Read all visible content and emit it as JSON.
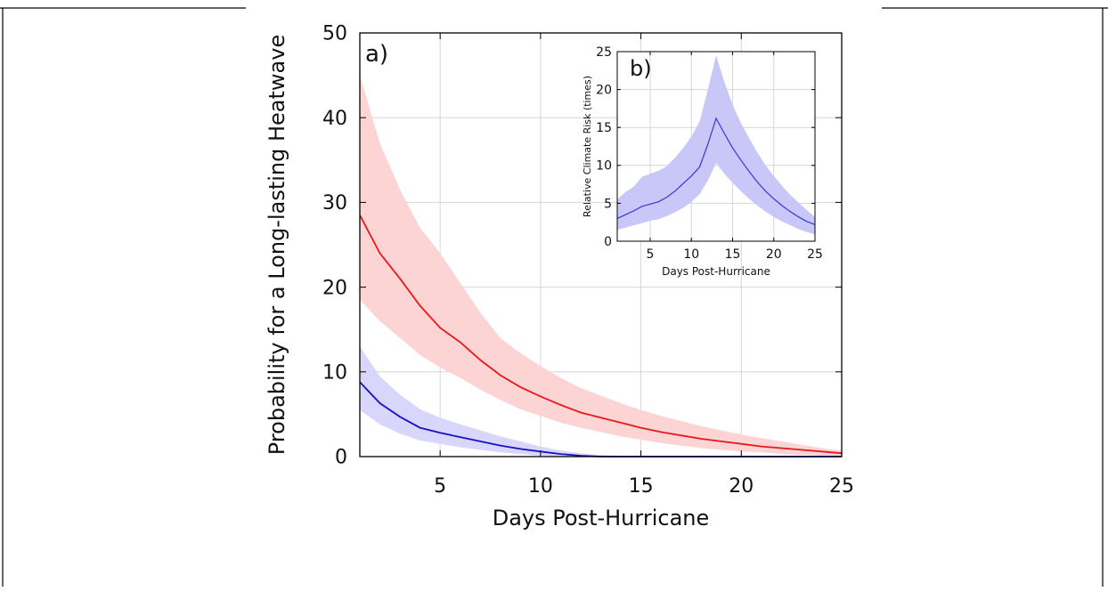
{
  "chart_data": [
    {
      "panel_label": "a)",
      "type": "line",
      "xlabel": "Days Post-Hurricane",
      "ylabel": "Probability for a Long-lasting Heatwave",
      "xlim": [
        1,
        25
      ],
      "ylim": [
        0,
        50
      ],
      "xticks": [
        5,
        10,
        15,
        20,
        25
      ],
      "yticks": [
        0,
        10,
        20,
        30,
        40,
        50
      ],
      "grid": true,
      "series": [
        {
          "color": "#e8181b",
          "band_color": "#fdd4d4",
          "x": [
            1,
            2,
            3,
            4,
            5,
            6,
            7,
            8,
            9,
            10,
            11,
            12,
            13,
            14,
            15,
            16,
            17,
            18,
            19,
            20,
            21,
            22,
            23,
            24,
            25
          ],
          "y": [
            28.5,
            24.0,
            21.0,
            17.8,
            15.2,
            13.5,
            11.4,
            9.6,
            8.2,
            7.1,
            6.1,
            5.2,
            4.6,
            4.0,
            3.4,
            2.9,
            2.5,
            2.1,
            1.8,
            1.5,
            1.2,
            1.0,
            0.8,
            0.6,
            0.4
          ],
          "y_low": [
            18.5,
            16.0,
            14.0,
            12.0,
            10.5,
            9.3,
            7.9,
            6.7,
            5.6,
            4.8,
            4.0,
            3.4,
            2.9,
            2.4,
            2.0,
            1.6,
            1.3,
            1.0,
            0.8,
            0.6,
            0.5,
            0.3,
            0.2,
            0.1,
            0.1
          ],
          "y_high": [
            45.0,
            37.0,
            31.5,
            27.0,
            24.0,
            20.5,
            17.0,
            14.0,
            12.2,
            10.7,
            9.3,
            8.1,
            7.2,
            6.3,
            5.5,
            4.8,
            4.2,
            3.6,
            3.1,
            2.6,
            2.2,
            1.8,
            1.4,
            1.0,
            0.7
          ]
        },
        {
          "color": "#1a10c8",
          "band_color": "#d8d6fb",
          "x": [
            1,
            2,
            3,
            4,
            5,
            6,
            7,
            8,
            9,
            10,
            11,
            12,
            13,
            14,
            15,
            16,
            17,
            18,
            19,
            20,
            21,
            22,
            23,
            24,
            25
          ],
          "y": [
            8.8,
            6.3,
            4.7,
            3.4,
            2.8,
            2.3,
            1.8,
            1.3,
            0.9,
            0.6,
            0.3,
            0.1,
            0.0,
            0.0,
            0.0,
            0.0,
            0.0,
            0.0,
            0.0,
            0.0,
            0.0,
            0.0,
            0.0,
            0.0,
            0.0
          ],
          "y_low": [
            5.5,
            3.8,
            2.7,
            1.9,
            1.5,
            1.1,
            0.8,
            0.5,
            0.3,
            0.1,
            0.0,
            0.0,
            0.0,
            0.0,
            0.0,
            0.0,
            0.0,
            0.0,
            0.0,
            0.0,
            0.0,
            0.0,
            0.0,
            0.0,
            0.0
          ],
          "y_high": [
            13.0,
            9.5,
            7.3,
            5.6,
            4.6,
            3.8,
            3.1,
            2.4,
            1.8,
            1.2,
            0.7,
            0.4,
            0.2,
            0.1,
            0.0,
            0.0,
            0.0,
            0.0,
            0.0,
            0.0,
            0.0,
            0.0,
            0.0,
            0.0,
            0.0
          ]
        }
      ]
    },
    {
      "panel_label": "b)",
      "type": "line",
      "xlabel": "Days Post-Hurricane",
      "ylabel": "Relative Climate Risk (times)",
      "xlim": [
        1,
        25
      ],
      "ylim": [
        0,
        25
      ],
      "xticks": [
        5,
        10,
        15,
        20,
        25
      ],
      "yticks": [
        0,
        5,
        10,
        15,
        20,
        25
      ],
      "grid": true,
      "series": [
        {
          "color": "#3a34d6",
          "band_color": "#c9c7f8",
          "x": [
            1,
            2,
            3,
            4,
            5,
            6,
            7,
            8,
            9,
            10,
            11,
            12,
            13,
            14,
            15,
            16,
            17,
            18,
            19,
            20,
            21,
            22,
            23,
            24,
            25
          ],
          "y": [
            3.0,
            3.5,
            4.0,
            4.6,
            4.9,
            5.2,
            5.8,
            6.6,
            7.6,
            8.6,
            9.8,
            12.8,
            16.2,
            14.2,
            12.3,
            10.7,
            9.2,
            7.8,
            6.6,
            5.6,
            4.7,
            3.9,
            3.2,
            2.6,
            2.2
          ],
          "y_low": [
            1.5,
            1.8,
            2.1,
            2.4,
            2.7,
            2.9,
            3.3,
            3.8,
            4.4,
            5.2,
            6.2,
            8.0,
            10.3,
            8.9,
            7.7,
            6.6,
            5.6,
            4.7,
            3.9,
            3.2,
            2.6,
            2.1,
            1.6,
            1.2,
            0.9
          ],
          "y_high": [
            5.5,
            6.5,
            7.2,
            8.5,
            8.9,
            9.3,
            9.9,
            11.0,
            12.3,
            13.8,
            15.8,
            20.0,
            24.5,
            21.0,
            18.0,
            15.6,
            13.6,
            11.7,
            10.0,
            8.6,
            7.3,
            6.1,
            5.1,
            4.1,
            3.2
          ]
        }
      ]
    }
  ]
}
